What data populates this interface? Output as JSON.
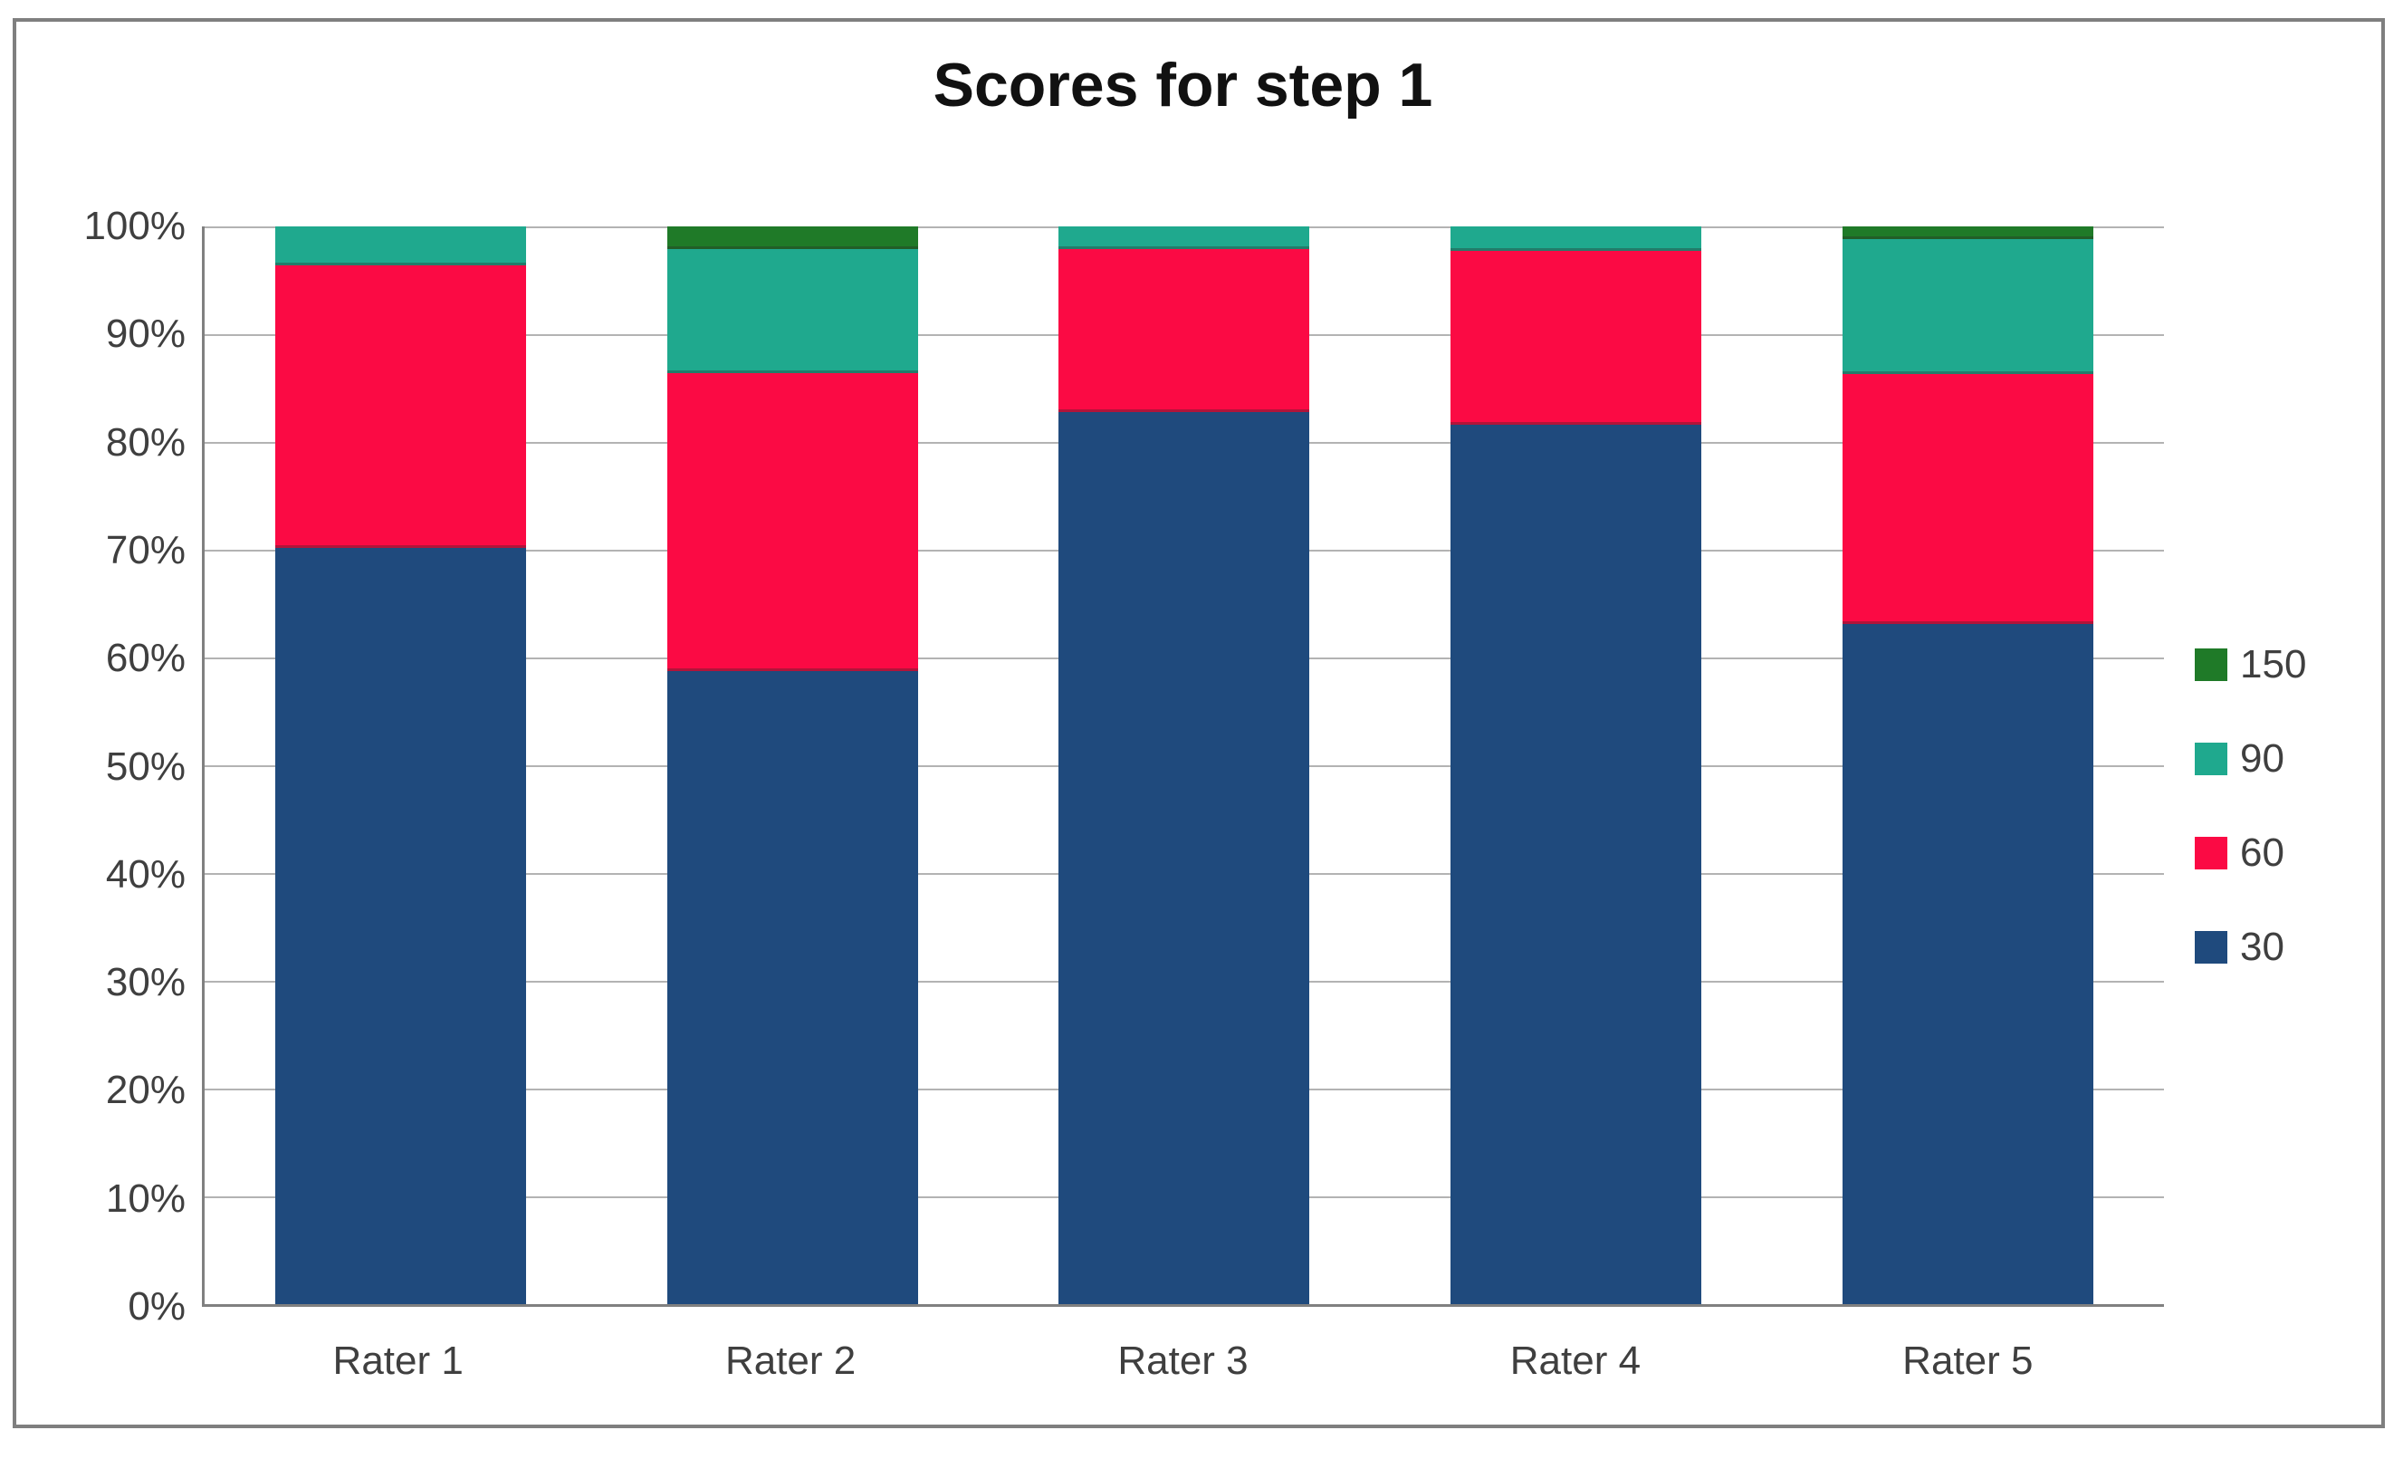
{
  "chart_data": {
    "type": "bar",
    "variant": "100%-stacked-column",
    "title": "Scores for step 1",
    "categories": [
      "Rater 1",
      "Rater 2",
      "Rater 3",
      "Rater 4",
      "Rater 5"
    ],
    "series": [
      {
        "name": "30",
        "color": "#1f4a7d",
        "values": [
          70.2,
          58.7,
          82.8,
          81.6,
          63.1
        ]
      },
      {
        "name": "60",
        "color": "#fb0a44",
        "values": [
          26.2,
          27.7,
          15.1,
          16.1,
          23.2
        ]
      },
      {
        "name": "90",
        "color": "#1fa98e",
        "values": [
          3.6,
          11.5,
          2.1,
          2.3,
          12.5
        ]
      },
      {
        "name": "150",
        "color": "#1f7a28",
        "values": [
          0,
          2.1,
          0,
          0,
          1.2
        ]
      }
    ],
    "legend": {
      "position": "right",
      "items": [
        {
          "label": "150",
          "color": "#1f7a28"
        },
        {
          "label": "90",
          "color": "#1fa98e"
        },
        {
          "label": "60",
          "color": "#fb0a44"
        },
        {
          "label": "30",
          "color": "#1f4a7d"
        }
      ]
    },
    "y_axis": {
      "min": 0,
      "max": 100,
      "tick_step": 10,
      "ticks": [
        "100%",
        "90%",
        "80%",
        "70%",
        "60%",
        "50%",
        "40%",
        "30%",
        "20%",
        "10%",
        "0%"
      ],
      "grid": true
    },
    "colors": {
      "gridline": "#b3b3b3",
      "axis": "#808080",
      "frame_border": "#7f7f7f",
      "text": "#3f3f3f",
      "background": "#ffffff"
    }
  }
}
